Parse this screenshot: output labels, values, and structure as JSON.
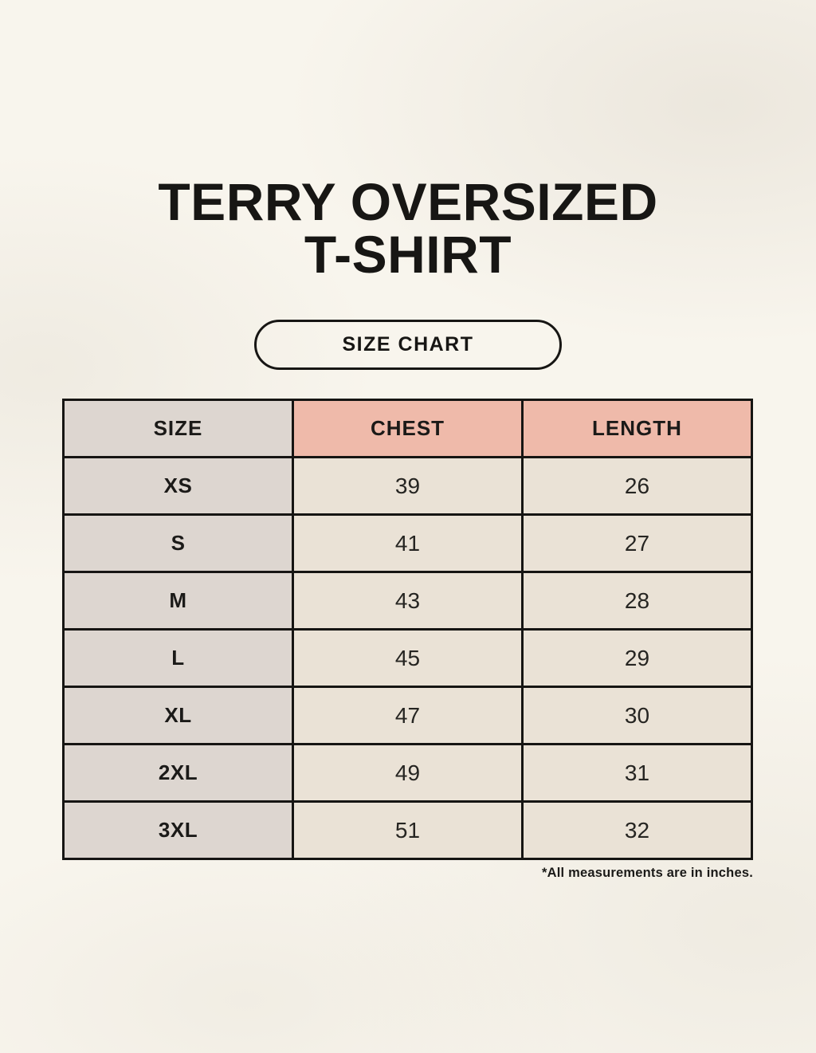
{
  "page": {
    "background_color": "#f8f5ed",
    "ink_color": "#171614"
  },
  "title": {
    "line1": "TERRY OVERSIZED",
    "line2": "T-SHIRT"
  },
  "size_chart_button": {
    "label": "SIZE CHART"
  },
  "chart_data": {
    "type": "table",
    "title": "TERRY OVERSIZED T-SHIRT",
    "columns": [
      "SIZE",
      "CHEST",
      "LENGTH"
    ],
    "rows": [
      {
        "size": "XS",
        "chest": "39",
        "length": "26"
      },
      {
        "size": "S",
        "chest": "41",
        "length": "27"
      },
      {
        "size": "M",
        "chest": "43",
        "length": "28"
      },
      {
        "size": "L",
        "chest": "45",
        "length": "29"
      },
      {
        "size": "XL",
        "chest": "47",
        "length": "30"
      },
      {
        "size": "2XL",
        "chest": "49",
        "length": "31"
      },
      {
        "size": "3XL",
        "chest": "51",
        "length": "32"
      }
    ],
    "units": "inches",
    "annotation": "*All measurements are in inches.",
    "colors": {
      "size_header_bg": "#ddd6d0",
      "measure_header_bg": "#efbaaa",
      "size_column_bg": "#ddd6d0",
      "value_cell_bg": "#eae2d6",
      "border": "#161513"
    }
  },
  "footnote": {
    "text": "*All measurements are in inches."
  }
}
